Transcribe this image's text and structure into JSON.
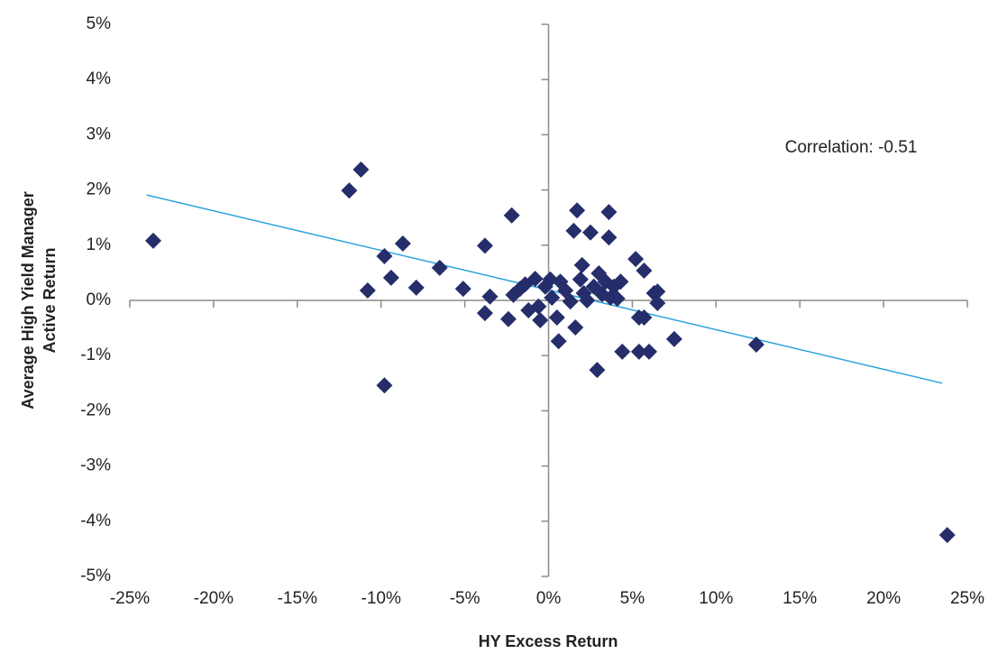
{
  "chart_data": {
    "type": "scatter",
    "x_label": "HY Excess Return",
    "y_label": [
      "Average High Yield Manager",
      "Active Return"
    ],
    "annotation": "Correlation: -0.51",
    "color": "#252d6a",
    "trendline": {
      "color": "#2aa3dc",
      "x": [
        -24,
        23.5
      ],
      "y": [
        1.91,
        -1.5
      ]
    },
    "xlim": [
      -25,
      25
    ],
    "ylim": [
      -5,
      5
    ],
    "xticks": [
      {
        "value": -25,
        "label": "-25%"
      },
      {
        "value": -20,
        "label": "-20%"
      },
      {
        "value": -15,
        "label": "-15%"
      },
      {
        "value": -10,
        "label": "-10%"
      },
      {
        "value": -5,
        "label": "-5%"
      },
      {
        "value": 0,
        "label": "0%"
      },
      {
        "value": 5,
        "label": "5%"
      },
      {
        "value": 10,
        "label": "10%"
      },
      {
        "value": 15,
        "label": "15%"
      },
      {
        "value": 20,
        "label": "20%"
      },
      {
        "value": 25,
        "label": "25%"
      }
    ],
    "yticks": [
      {
        "value": -5,
        "label": "-5%"
      },
      {
        "value": -4,
        "label": "-4%"
      },
      {
        "value": -3,
        "label": "-3%"
      },
      {
        "value": -2,
        "label": "-2%"
      },
      {
        "value": -1,
        "label": "-1%"
      },
      {
        "value": 0,
        "label": "0%"
      },
      {
        "value": 1,
        "label": "1%"
      },
      {
        "value": 2,
        "label": "2%"
      },
      {
        "value": 3,
        "label": "3%"
      },
      {
        "value": 4,
        "label": "4%"
      },
      {
        "value": 5,
        "label": "5%"
      }
    ],
    "x": [
      -23.6,
      -11.2,
      -11.9,
      -8.7,
      -9.8,
      -9.4,
      -10.8,
      -7.9,
      -6.5,
      -9.8,
      -5.1,
      -3.8,
      -2.2,
      -3.5,
      -3.8,
      -2.4,
      -2.1,
      -1.7,
      -1.4,
      -1.2,
      -0.8,
      -0.6,
      -0.5,
      -0.2,
      0.1,
      0.2,
      0.5,
      0.6,
      0.7,
      1.0,
      1.3,
      1.5,
      1.7,
      1.6,
      1.9,
      2.0,
      2.1,
      2.3,
      2.5,
      2.7,
      2.9,
      3.0,
      3.2,
      3.4,
      3.6,
      3.6,
      3.7,
      3.9,
      4.1,
      4.3,
      4.4,
      5.2,
      5.4,
      5.4,
      5.7,
      5.7,
      6.0,
      6.3,
      6.5,
      6.5,
      7.5,
      12.4,
      23.8
    ],
    "y": [
      1.08,
      2.37,
      1.99,
      1.03,
      0.8,
      0.41,
      0.18,
      0.23,
      0.59,
      -1.54,
      0.21,
      0.99,
      1.54,
      0.07,
      -0.23,
      -0.34,
      0.1,
      0.21,
      0.29,
      -0.18,
      0.39,
      -0.11,
      -0.36,
      0.25,
      0.38,
      0.05,
      -0.31,
      -0.74,
      0.34,
      0.18,
      -0.02,
      1.26,
      1.63,
      -0.49,
      0.38,
      0.64,
      0.13,
      0.0,
      1.23,
      0.25,
      -1.26,
      0.49,
      0.11,
      0.34,
      1.6,
      1.14,
      0.05,
      0.25,
      0.03,
      0.34,
      -0.93,
      0.75,
      -0.31,
      -0.93,
      0.54,
      -0.31,
      -0.93,
      0.13,
      -0.05,
      0.16,
      -0.7,
      -0.8,
      -4.25
    ]
  }
}
